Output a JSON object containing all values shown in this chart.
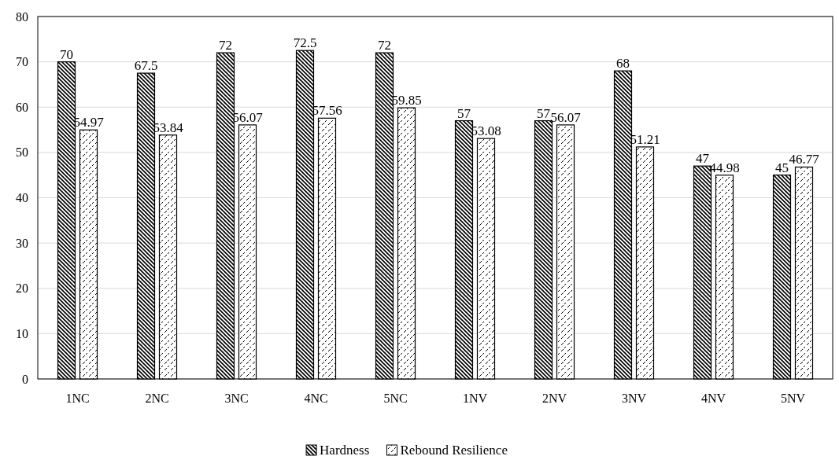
{
  "chart_data": {
    "type": "bar",
    "categories": [
      "1NC",
      "2NC",
      "3NC",
      "4NC",
      "5NC",
      "1NV",
      "2NV",
      "3NV",
      "4NV",
      "5NV"
    ],
    "series": [
      {
        "name": "Hardness",
        "color": "#000000",
        "values": [
          70,
          67.5,
          72,
          72.5,
          72,
          57,
          57,
          68,
          47,
          45
        ]
      },
      {
        "name": "Rebound Resilience",
        "color": "#000000",
        "values": [
          54.97,
          53.84,
          56.07,
          57.56,
          59.85,
          53.08,
          56.07,
          51.21,
          44.98,
          46.77
        ]
      }
    ],
    "ylim": [
      0,
      80
    ],
    "yticks": [
      0,
      10,
      20,
      30,
      40,
      50,
      60,
      70,
      80
    ],
    "grid": "y",
    "legend": "bottom",
    "data_labels": true
  }
}
